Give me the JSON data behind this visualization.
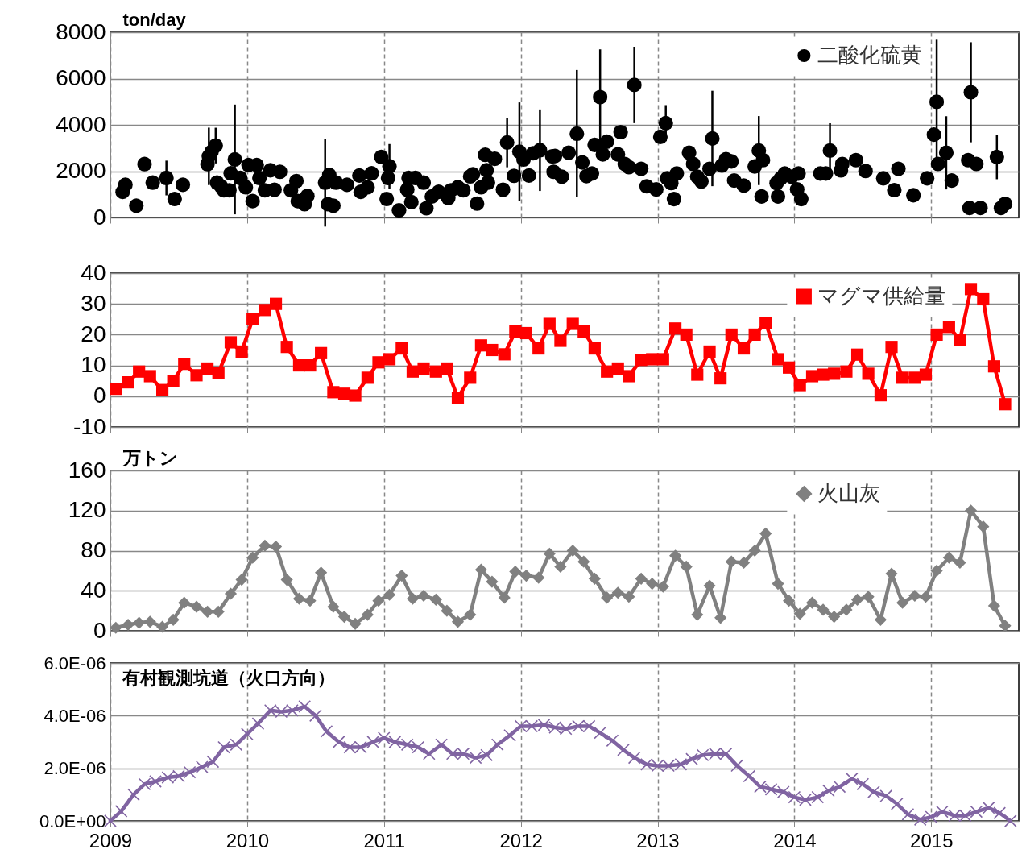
{
  "chart_data": [
    {
      "type": "scatter",
      "ylabel": "ton/day",
      "xlim": [
        2009,
        2015.64
      ],
      "xticks": [
        2009,
        2010,
        2011,
        2012,
        2013,
        2014,
        2015
      ],
      "ylim": [
        0,
        8000
      ],
      "yticks": [
        0,
        2000,
        4000,
        6000,
        8000
      ],
      "grid": true,
      "legend": "top right",
      "marker": "circle",
      "tick_labels": "y",
      "x": [
        2009.09,
        2009.11,
        2009.19,
        2009.25,
        2009.31,
        2009.41,
        2009.47,
        2009.53,
        2009.71,
        2009.72,
        2009.74,
        2009.77,
        2009.78,
        2009.81,
        2009.83,
        2009.87,
        2009.88,
        2009.91,
        2009.95,
        2009.99,
        2010.01,
        2010.04,
        2010.07,
        2010.09,
        2010.13,
        2010.17,
        2010.2,
        2010.24,
        2010.32,
        2010.36,
        2010.37,
        2010.42,
        2010.44,
        2010.57,
        2010.6,
        2010.59,
        2010.63,
        2010.65,
        2010.73,
        2010.82,
        2010.83,
        2010.88,
        2010.91,
        2010.98,
        2011.04,
        2011.03,
        2011.02,
        2011.11,
        2011.18,
        2011.17,
        2011.2,
        2011.23,
        2011.29,
        2011.31,
        2011.35,
        2011.4,
        2011.47,
        2011.49,
        2011.54,
        2011.58,
        2011.63,
        2011.65,
        2011.68,
        2011.71,
        2011.74,
        2011.75,
        2011.76,
        2011.81,
        2011.87,
        2011.9,
        2011.95,
        2011.99,
        2012.02,
        2012.06,
        2012.09,
        2012.14,
        2012.23,
        2012.24,
        2012.25,
        2012.3,
        2012.35,
        2012.41,
        2012.45,
        2012.48,
        2012.52,
        2012.54,
        2012.58,
        2012.6,
        2012.63,
        2012.71,
        2012.73,
        2012.76,
        2012.79,
        2012.83,
        2012.88,
        2012.92,
        2012.99,
        2013.02,
        2013.06,
        2013.07,
        2013.1,
        2013.12,
        2013.14,
        2013.23,
        2013.26,
        2013.29,
        2013.32,
        2013.38,
        2013.4,
        2013.47,
        2013.5,
        2013.54,
        2013.56,
        2013.63,
        2013.74,
        2013.77,
        2013.71,
        2013.76,
        2013.88,
        2013.87,
        2013.9,
        2013.93,
        2013.98,
        2014.03,
        2014.02,
        2014.05,
        2014.19,
        2014.23,
        2014.26,
        2014.34,
        2014.35,
        2014.45,
        2014.52,
        2014.65,
        2014.73,
        2014.76,
        2014.87,
        2014.97,
        2015.02,
        2015.04,
        2015.05,
        2015.11,
        2015.15,
        2015.27,
        2015.29,
        2015.28,
        2015.33,
        2015.36,
        2015.48,
        2015.51,
        2015.54
      ],
      "series": [
        {
          "name": "二酸化硫黄",
          "color": "#000000",
          "values": [
            1107,
            1413,
            507,
            2306,
            1506,
            1706,
            800,
            1413,
            2306,
            2640,
            2840,
            3106,
            1506,
            1333,
            1173,
            1173,
            1906,
            2506,
            1706,
            1306,
            2266,
            707,
            2266,
            1706,
            1173,
            2040,
            1200,
            1973,
            1173,
            1573,
            707,
            573,
            933,
            1506,
            1840,
            573,
            507,
            1506,
            1413,
            1813,
            1107,
            1306,
            1906,
            2613,
            2213,
            1706,
            800,
            307,
            1706,
            1200,
            667,
            1706,
            1506,
            400,
            907,
            1107,
            840,
            1173,
            1306,
            1173,
            1773,
            1866,
            600,
            1306,
            2706,
            2040,
            1506,
            2533,
            1200,
            3240,
            1800,
            2840,
            2506,
            1813,
            2773,
            2906,
            2640,
            1973,
            2656,
            1761,
            2793,
            3619,
            2380,
            1789,
            1899,
            3137,
            5201,
            2724,
            3275,
            2724,
            3688,
            2312,
            2174,
            5724,
            2105,
            1348,
            1211,
            3481,
            4073,
            1692,
            1486,
            798,
            1899,
            2793,
            2312,
            1761,
            1555,
            2105,
            3412,
            2243,
            2518,
            2422,
            1596,
            1376,
            2890,
            2477,
            2202,
            908,
            908,
            1486,
            1692,
            1899,
            1761,
            1899,
            1211,
            798,
            1899,
            1899,
            2890,
            2036,
            2312,
            2477,
            2009,
            1692,
            1183,
            2105,
            963,
            1692,
            3578,
            4995,
            2312,
            2793,
            1596,
            2477,
            5408,
            413,
            2312,
            413,
            2614,
            413,
            592
          ],
          "errors": [
            null,
            null,
            null,
            null,
            null,
            750,
            null,
            null,
            null,
            1240,
            null,
            770,
            null,
            null,
            null,
            null,
            null,
            2370,
            null,
            null,
            null,
            null,
            null,
            null,
            null,
            null,
            null,
            null,
            null,
            null,
            null,
            null,
            null,
            1900,
            null,
            null,
            null,
            null,
            null,
            null,
            null,
            null,
            null,
            null,
            960,
            null,
            null,
            null,
            null,
            null,
            null,
            null,
            null,
            null,
            null,
            null,
            null,
            null,
            null,
            null,
            null,
            null,
            null,
            null,
            null,
            null,
            null,
            null,
            null,
            1070,
            null,
            2130,
            null,
            null,
            null,
            1760,
            null,
            null,
            null,
            null,
            null,
            2750,
            null,
            null,
            null,
            null,
            2060,
            null,
            null,
            null,
            null,
            null,
            null,
            1650,
            null,
            null,
            null,
            null,
            780,
            null,
            null,
            null,
            null,
            null,
            null,
            null,
            null,
            null,
            2060,
            null,
            null,
            null,
            null,
            null,
            1490,
            null,
            null,
            null,
            null,
            null,
            null,
            null,
            null,
            null,
            null,
            null,
            null,
            null,
            1180,
            null,
            null,
            null,
            null,
            null,
            null,
            null,
            null,
            null,
            null,
            2680,
            null,
            1580,
            null,
            null,
            2160,
            null,
            null,
            null,
            960,
            null,
            null
          ]
        }
      ]
    },
    {
      "type": "line",
      "xlim": [
        2009,
        2015.64
      ],
      "xticks": [
        2009,
        2010,
        2011,
        2012,
        2013,
        2014,
        2015
      ],
      "ylim": [
        -10,
        40
      ],
      "yticks": [
        -10,
        0,
        10,
        20,
        30,
        40
      ],
      "grid": true,
      "legend": "top right",
      "marker": "square",
      "line_style": "solid",
      "tick_labels": "y",
      "x": [
        2009.04,
        2009.13,
        2009.21,
        2009.29,
        2009.38,
        2009.46,
        2009.54,
        2009.63,
        2009.71,
        2009.79,
        2009.88,
        2009.96,
        2010.04,
        2010.13,
        2010.21,
        2010.29,
        2010.38,
        2010.46,
        2010.54,
        2010.63,
        2010.71,
        2010.79,
        2010.88,
        2010.96,
        2011.04,
        2011.13,
        2011.21,
        2011.29,
        2011.38,
        2011.46,
        2011.54,
        2011.63,
        2011.71,
        2011.79,
        2011.88,
        2011.96,
        2012.04,
        2012.13,
        2012.21,
        2012.29,
        2012.38,
        2012.46,
        2012.54,
        2012.63,
        2012.71,
        2012.79,
        2012.88,
        2012.96,
        2013.04,
        2013.13,
        2013.21,
        2013.29,
        2013.38,
        2013.46,
        2013.54,
        2013.63,
        2013.71,
        2013.79,
        2013.88,
        2013.96,
        2014.04,
        2014.13,
        2014.21,
        2014.29,
        2014.38,
        2014.46,
        2014.54,
        2014.63,
        2014.71,
        2014.79,
        2014.88,
        2014.96,
        2015.04,
        2015.13,
        2015.21,
        2015.29,
        2015.38,
        2015.46,
        2015.54
      ],
      "series": [
        {
          "name": "マグマ供給量",
          "color": "#ff0000",
          "values": [
            2.4,
            4.5,
            8,
            6.5,
            2,
            5,
            10.5,
            6.8,
            9,
            7.5,
            17.5,
            14.5,
            25,
            28,
            30,
            16,
            10,
            10,
            14,
            1.3,
            0.8,
            0.2,
            6,
            11,
            12,
            15.5,
            8,
            9,
            8,
            9,
            -0.5,
            6,
            16.5,
            15,
            13.6,
            21,
            20.5,
            15.5,
            23.5,
            18,
            23.5,
            21,
            15.5,
            8,
            9,
            6.5,
            11.8,
            12,
            12,
            22,
            20,
            7,
            14.5,
            5.8,
            20,
            15.5,
            20,
            23.8,
            12,
            9.3,
            3.6,
            6.5,
            7,
            7.3,
            8,
            13.5,
            7.3,
            0.3,
            16,
            6,
            6,
            7,
            20,
            22.5,
            18.3,
            34.8,
            31.5,
            9.7,
            -2.6
          ]
        }
      ]
    },
    {
      "type": "line",
      "ylabel": "万トン",
      "xlim": [
        2009,
        2015.64
      ],
      "xticks": [
        2009,
        2010,
        2011,
        2012,
        2013,
        2014,
        2015
      ],
      "ylim": [
        0,
        160
      ],
      "yticks": [
        0,
        40,
        80,
        120,
        160
      ],
      "grid": true,
      "legend": "top right",
      "marker": "diamond",
      "line_style": "solid",
      "tick_labels": "y",
      "x": [
        2009.04,
        2009.13,
        2009.21,
        2009.29,
        2009.38,
        2009.46,
        2009.54,
        2009.63,
        2009.71,
        2009.79,
        2009.88,
        2009.96,
        2010.04,
        2010.13,
        2010.21,
        2010.29,
        2010.38,
        2010.46,
        2010.54,
        2010.63,
        2010.71,
        2010.79,
        2010.88,
        2010.96,
        2011.04,
        2011.13,
        2011.21,
        2011.29,
        2011.38,
        2011.46,
        2011.54,
        2011.63,
        2011.71,
        2011.79,
        2011.88,
        2011.96,
        2012.04,
        2012.13,
        2012.21,
        2012.29,
        2012.38,
        2012.46,
        2012.54,
        2012.63,
        2012.71,
        2012.79,
        2012.88,
        2012.96,
        2013.04,
        2013.13,
        2013.21,
        2013.29,
        2013.38,
        2013.46,
        2013.54,
        2013.63,
        2013.71,
        2013.79,
        2013.88,
        2013.96,
        2014.04,
        2014.13,
        2014.21,
        2014.29,
        2014.38,
        2014.46,
        2014.54,
        2014.63,
        2014.71,
        2014.79,
        2014.88,
        2014.96,
        2015.04,
        2015.13,
        2015.21,
        2015.29,
        2015.38,
        2015.46,
        2015.54
      ],
      "series": [
        {
          "name": "火山灰",
          "color": "#808080",
          "values": [
            3,
            6,
            8,
            9,
            4,
            11,
            28,
            24,
            19,
            19,
            37,
            51,
            73,
            85,
            84,
            51,
            32,
            30,
            58,
            24,
            14,
            7,
            16,
            30,
            36,
            55,
            32,
            35,
            31,
            20,
            9,
            16,
            61,
            49,
            33,
            59,
            55,
            53,
            77,
            64,
            80,
            69,
            52,
            33,
            38,
            34,
            52,
            47,
            44,
            75,
            64,
            16,
            45,
            13,
            69,
            68,
            80,
            97,
            47,
            30,
            17,
            28,
            21,
            14,
            21,
            31,
            34,
            11,
            57,
            28,
            35,
            34,
            60,
            73,
            68,
            120,
            104,
            25,
            5
          ]
        }
      ]
    },
    {
      "type": "line",
      "title": "有村観測坑道（火口方向）",
      "xlim": [
        2009,
        2015.64
      ],
      "xticks": [
        2009,
        2010,
        2011,
        2012,
        2013,
        2014,
        2015
      ],
      "ylim": [
        0,
        6e-06
      ],
      "yticks": [
        {
          "value": 0,
          "label": "0.0E+00"
        },
        {
          "value": 2e-06,
          "label": "2.0E-06"
        },
        {
          "value": 4e-06,
          "label": "4.0E-06"
        },
        {
          "value": 6e-06,
          "label": "6.0E-06"
        }
      ],
      "grid": true,
      "marker": "cross",
      "line_style": "solid",
      "x": [
        2009,
        2009.08,
        2009.17,
        2009.25,
        2009.33,
        2009.42,
        2009.5,
        2009.58,
        2009.67,
        2009.75,
        2009.83,
        2009.92,
        2010,
        2010.08,
        2010.17,
        2010.25,
        2010.33,
        2010.42,
        2010.5,
        2010.58,
        2010.67,
        2010.75,
        2010.83,
        2010.92,
        2011,
        2011.08,
        2011.17,
        2011.25,
        2011.33,
        2011.42,
        2011.5,
        2011.58,
        2011.67,
        2011.75,
        2011.83,
        2011.92,
        2012,
        2012.08,
        2012.17,
        2012.25,
        2012.33,
        2012.42,
        2012.5,
        2012.58,
        2012.67,
        2012.75,
        2012.83,
        2012.92,
        2013,
        2013.08,
        2013.17,
        2013.25,
        2013.33,
        2013.42,
        2013.5,
        2013.58,
        2013.67,
        2013.75,
        2013.83,
        2013.92,
        2014,
        2014.08,
        2014.17,
        2014.25,
        2014.33,
        2014.42,
        2014.5,
        2014.58,
        2014.67,
        2014.75,
        2014.83,
        2014.92,
        2015,
        2015.08,
        2015.17,
        2015.25,
        2015.33,
        2015.42,
        2015.5,
        2015.58
      ],
      "series": [
        {
          "color": "#8064a2",
          "values": [
            0,
            3.7e-07,
            1e-06,
            1.4e-06,
            1.5e-06,
            1.65e-06,
            1.7e-06,
            1.85e-06,
            2.05e-06,
            2.25e-06,
            2.8e-06,
            2.9e-06,
            3.3e-06,
            3.7e-06,
            4.2e-06,
            4.15e-06,
            4.2e-06,
            4.35e-06,
            4e-06,
            3.4e-06,
            3e-06,
            2.8e-06,
            2.8e-06,
            3e-06,
            3.15e-06,
            3e-06,
            2.9e-06,
            2.8e-06,
            2.55e-06,
            2.9e-06,
            2.55e-06,
            2.55e-06,
            2.4e-06,
            2.5e-06,
            2.9e-06,
            3.25e-06,
            3.6e-06,
            3.6e-06,
            3.65e-06,
            3.55e-06,
            3.5e-06,
            3.6e-06,
            3.6e-06,
            3.35e-06,
            3.05e-06,
            2.7e-06,
            2.4e-06,
            2.15e-06,
            2.1e-06,
            2.1e-06,
            2.15e-06,
            2.35e-06,
            2.5e-06,
            2.55e-06,
            2.55e-06,
            2.1e-06,
            1.7e-06,
            1.3e-06,
            1.2e-06,
            1.1e-06,
            9e-07,
            8e-07,
            9e-07,
            1.15e-06,
            1.3e-06,
            1.6e-06,
            1.4e-06,
            1.1e-06,
            9.5e-07,
            6.5e-07,
            2.5e-07,
            5e-08,
            1.5e-07,
            3.5e-07,
            2e-07,
            2e-07,
            3.5e-07,
            5e-07,
            3e-07,
            0
          ]
        }
      ]
    }
  ]
}
